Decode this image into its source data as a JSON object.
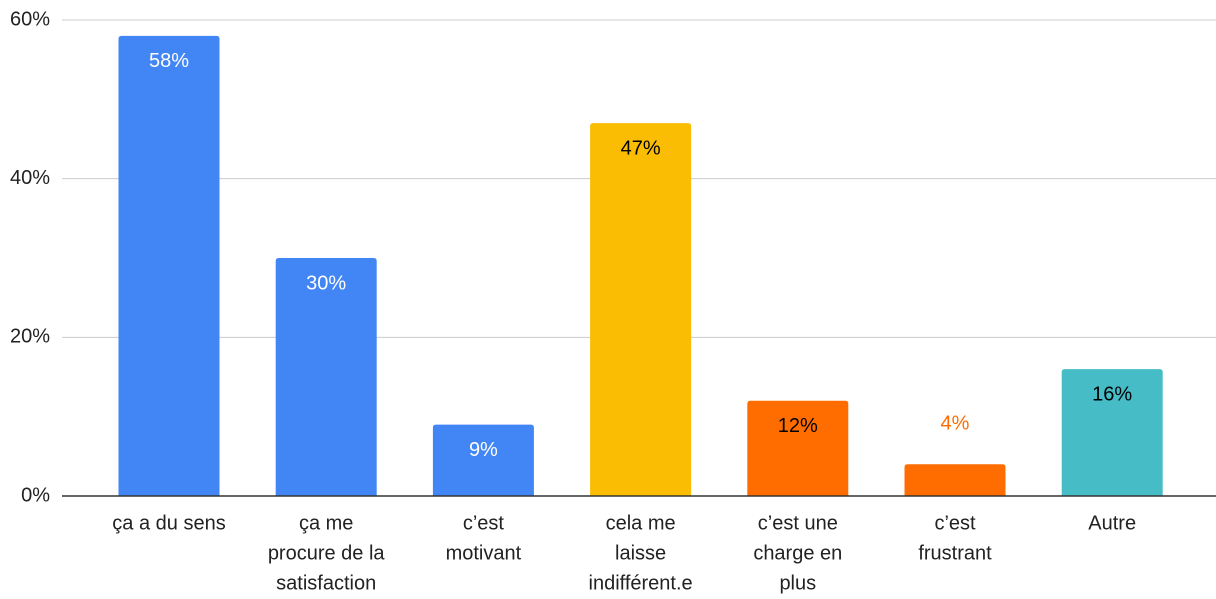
{
  "chart_data": {
    "type": "bar",
    "categories": [
      [
        "ça a du sens"
      ],
      [
        "ça me",
        "procure de la",
        "satisfaction"
      ],
      [
        "c’est",
        "motivant"
      ],
      [
        "cela me",
        "laisse",
        "indifférent.e"
      ],
      [
        "c’est une",
        "charge en",
        "plus"
      ],
      [
        "c’est",
        "frustrant"
      ],
      [
        "Autre"
      ]
    ],
    "values": [
      58,
      30,
      9,
      47,
      12,
      4,
      16
    ],
    "value_labels": [
      "58%",
      "30%",
      "9%",
      "47%",
      "12%",
      "4%",
      "16%"
    ],
    "colors": [
      "#4285f4",
      "#4285f4",
      "#4285f4",
      "#fbbc04",
      "#ff6d01",
      "#ff6d01",
      "#46bdc6"
    ],
    "label_colors": [
      "#ffffff",
      "#ffffff",
      "#ffffff",
      "#000000",
      "#000000",
      "#ff6d01",
      "#000000"
    ],
    "ylim": [
      0,
      60
    ],
    "yticks": [
      {
        "value": 0,
        "label": "0%"
      },
      {
        "value": 20,
        "label": "20%"
      },
      {
        "value": 40,
        "label": "40%"
      },
      {
        "value": 60,
        "label": "60%"
      }
    ],
    "grid": true
  }
}
